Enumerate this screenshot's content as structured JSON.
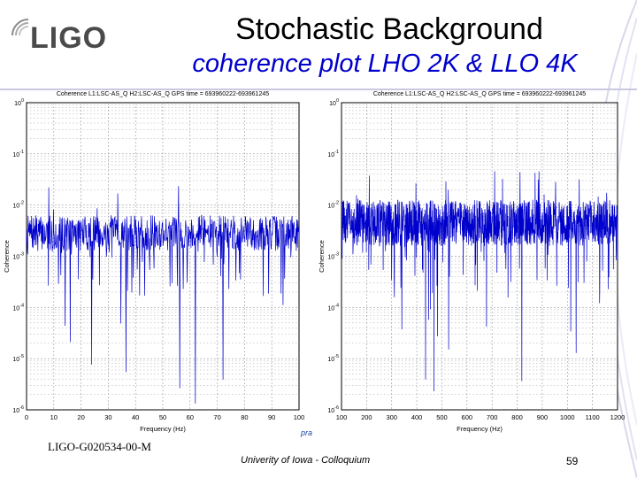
{
  "slide": {
    "logo_text": "LIGO",
    "title": "Stochastic Background",
    "subtitle": "coherence plot LHO 2K & LLO 4K",
    "footer_id": "LIGO-G020534-00-M",
    "footer_venue": "Univerity of Iowa - Colloquium",
    "page_number": "59",
    "ppt_mark": "pra",
    "colors": {
      "subtitle": "#0000cc",
      "series": "#0000cc",
      "grid": "#9a9a9a"
    }
  },
  "chart_data": [
    {
      "type": "line",
      "title": "Coherence L1:LSC-AS_Q H2:LSC-AS_Q  GPS time = 693960222-693961245",
      "xlabel": "Frequency (Hz)",
      "ylabel": "Coherence",
      "xlim": [
        0,
        100
      ],
      "ylim_log10": [
        -6,
        0
      ],
      "x_ticks": [
        0,
        10,
        20,
        30,
        40,
        50,
        60,
        70,
        80,
        90,
        100
      ],
      "x_tick_labels": [
        "0",
        "10",
        "20",
        "30",
        "40",
        "50",
        "60",
        "70",
        "80",
        "90",
        "100"
      ],
      "y_ticks_log10": [
        0,
        -1,
        -2,
        -3,
        -4,
        -5,
        -6
      ],
      "y_tick_labels": [
        "10^0",
        "10^-1",
        "10^-2",
        "10^-3",
        "10^-4",
        "10^-5",
        "10^-6"
      ],
      "series": [
        {
          "name": "coherence",
          "samples": 700,
          "band_log10": [
            -2.9,
            -2.2
          ],
          "spike_max_log10": -1.6,
          "dip_min_log10": -5.9
        }
      ]
    },
    {
      "type": "line",
      "title": "Coherence L1:LSC-AS_Q H2:LSC-AS_Q  GPS time = 693960222-693961245",
      "xlabel": "Frequency (Hz)",
      "ylabel": "Coherence",
      "xlim": [
        100,
        1200
      ],
      "ylim_log10": [
        -6,
        0
      ],
      "x_ticks": [
        100,
        200,
        300,
        400,
        500,
        600,
        700,
        800,
        900,
        1000,
        1100,
        1200
      ],
      "x_tick_labels": [
        "100",
        "200",
        "300",
        "400",
        "500",
        "600",
        "700",
        "800",
        "900",
        "1000",
        "1100",
        "1200"
      ],
      "y_ticks_log10": [
        0,
        -1,
        -2,
        -3,
        -4,
        -5,
        -6
      ],
      "y_tick_labels": [
        "10^0",
        "10^-1",
        "10^-2",
        "10^-3",
        "10^-4",
        "10^-5",
        "10^-6"
      ],
      "series": [
        {
          "name": "coherence",
          "samples": 1400,
          "band_log10": [
            -2.8,
            -1.9
          ],
          "spike_max_log10": -1.3,
          "dip_min_log10": -5.8
        }
      ]
    }
  ]
}
